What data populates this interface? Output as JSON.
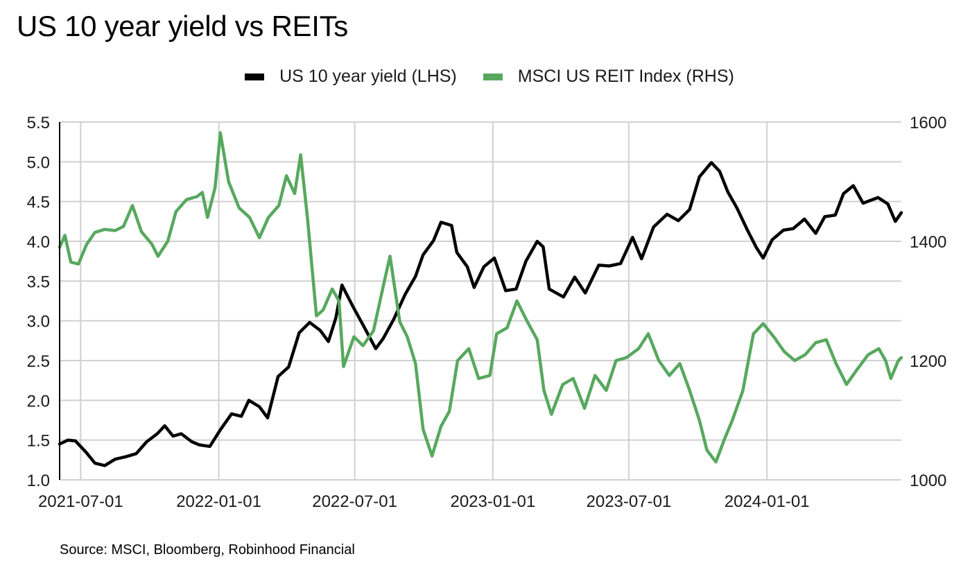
{
  "chart_data": {
    "type": "line",
    "title": "US 10 year yield vs REITs",
    "source": "Source: MSCI, Bloomberg, Robinhood Financial",
    "xlabel": "",
    "ylabel_left": "",
    "ylabel_right": "",
    "legend_position": "top-center",
    "grid": true,
    "x_range": [
      "2021-06-03",
      "2024-06-28"
    ],
    "x_ticks": [
      "2021-07-01",
      "2022-01-01",
      "2022-07-01",
      "2023-01-01",
      "2023-07-01",
      "2024-01-01"
    ],
    "y_left": {
      "range": [
        1.0,
        5.5
      ],
      "ticks": [
        "1.0",
        "1.5",
        "2.0",
        "2.5",
        "3.0",
        "3.5",
        "4.0",
        "4.5",
        "5.0",
        "5.5"
      ]
    },
    "y_right": {
      "range": [
        1000,
        1600
      ],
      "ticks": [
        "1000",
        "1200",
        "1400",
        "1600"
      ]
    },
    "series": [
      {
        "name": "US 10 year yield (LHS)",
        "axis": "left",
        "color": "#000000",
        "points": [
          [
            "2021-06-03",
            1.45
          ],
          [
            "2021-06-14",
            1.5
          ],
          [
            "2021-06-24",
            1.49
          ],
          [
            "2021-07-08",
            1.35
          ],
          [
            "2021-07-20",
            1.21
          ],
          [
            "2021-08-02",
            1.18
          ],
          [
            "2021-08-16",
            1.26
          ],
          [
            "2021-08-30",
            1.29
          ],
          [
            "2021-09-13",
            1.33
          ],
          [
            "2021-09-27",
            1.48
          ],
          [
            "2021-10-11",
            1.58
          ],
          [
            "2021-10-21",
            1.68
          ],
          [
            "2021-11-01",
            1.55
          ],
          [
            "2021-11-12",
            1.58
          ],
          [
            "2021-11-26",
            1.48
          ],
          [
            "2021-12-06",
            1.44
          ],
          [
            "2021-12-20",
            1.42
          ],
          [
            "2022-01-03",
            1.63
          ],
          [
            "2022-01-18",
            1.83
          ],
          [
            "2022-01-31",
            1.8
          ],
          [
            "2022-02-10",
            2.0
          ],
          [
            "2022-02-24",
            1.92
          ],
          [
            "2022-03-07",
            1.78
          ],
          [
            "2022-03-21",
            2.3
          ],
          [
            "2022-04-04",
            2.42
          ],
          [
            "2022-04-18",
            2.85
          ],
          [
            "2022-05-02",
            2.98
          ],
          [
            "2022-05-16",
            2.88
          ],
          [
            "2022-05-27",
            2.74
          ],
          [
            "2022-06-06",
            3.04
          ],
          [
            "2022-06-14",
            3.45
          ],
          [
            "2022-06-28",
            3.19
          ],
          [
            "2022-07-12",
            2.95
          ],
          [
            "2022-07-29",
            2.65
          ],
          [
            "2022-08-08",
            2.78
          ],
          [
            "2022-08-22",
            3.02
          ],
          [
            "2022-09-06",
            3.33
          ],
          [
            "2022-09-20",
            3.56
          ],
          [
            "2022-09-30",
            3.83
          ],
          [
            "2022-10-14",
            4.01
          ],
          [
            "2022-10-24",
            4.24
          ],
          [
            "2022-11-07",
            4.2
          ],
          [
            "2022-11-14",
            3.86
          ],
          [
            "2022-11-28",
            3.68
          ],
          [
            "2022-12-07",
            3.42
          ],
          [
            "2022-12-20",
            3.68
          ],
          [
            "2023-01-03",
            3.79
          ],
          [
            "2023-01-18",
            3.38
          ],
          [
            "2023-02-01",
            3.4
          ],
          [
            "2023-02-14",
            3.75
          ],
          [
            "2023-03-01",
            4.0
          ],
          [
            "2023-03-09",
            3.93
          ],
          [
            "2023-03-17",
            3.4
          ],
          [
            "2023-04-05",
            3.3
          ],
          [
            "2023-04-20",
            3.55
          ],
          [
            "2023-05-04",
            3.35
          ],
          [
            "2023-05-22",
            3.7
          ],
          [
            "2023-06-05",
            3.69
          ],
          [
            "2023-06-20",
            3.72
          ],
          [
            "2023-07-06",
            4.05
          ],
          [
            "2023-07-18",
            3.78
          ],
          [
            "2023-08-03",
            4.18
          ],
          [
            "2023-08-21",
            4.34
          ],
          [
            "2023-09-05",
            4.26
          ],
          [
            "2023-09-20",
            4.4
          ],
          [
            "2023-10-03",
            4.81
          ],
          [
            "2023-10-19",
            4.99
          ],
          [
            "2023-10-30",
            4.88
          ],
          [
            "2023-11-10",
            4.62
          ],
          [
            "2023-11-22",
            4.42
          ],
          [
            "2023-12-06",
            4.14
          ],
          [
            "2023-12-18",
            3.92
          ],
          [
            "2023-12-27",
            3.79
          ],
          [
            "2024-01-08",
            4.02
          ],
          [
            "2024-01-23",
            4.14
          ],
          [
            "2024-02-05",
            4.16
          ],
          [
            "2024-02-20",
            4.28
          ],
          [
            "2024-03-06",
            4.1
          ],
          [
            "2024-03-18",
            4.31
          ],
          [
            "2024-04-01",
            4.33
          ],
          [
            "2024-04-12",
            4.6
          ],
          [
            "2024-04-25",
            4.7
          ],
          [
            "2024-05-08",
            4.48
          ],
          [
            "2024-05-28",
            4.55
          ],
          [
            "2024-06-10",
            4.47
          ],
          [
            "2024-06-20",
            4.25
          ],
          [
            "2024-06-28",
            4.36
          ]
        ]
      },
      {
        "name": "MSCI US REIT Index (RHS)",
        "axis": "right",
        "color": "#57a85e",
        "points": [
          [
            "2021-06-03",
            1390
          ],
          [
            "2021-06-10",
            1410
          ],
          [
            "2021-06-18",
            1365
          ],
          [
            "2021-06-28",
            1362
          ],
          [
            "2021-07-09",
            1395
          ],
          [
            "2021-07-20",
            1415
          ],
          [
            "2021-08-02",
            1420
          ],
          [
            "2021-08-16",
            1418
          ],
          [
            "2021-08-27",
            1425
          ],
          [
            "2021-09-08",
            1460
          ],
          [
            "2021-09-20",
            1416
          ],
          [
            "2021-10-04",
            1395
          ],
          [
            "2021-10-12",
            1375
          ],
          [
            "2021-10-25",
            1400
          ],
          [
            "2021-11-05",
            1450
          ],
          [
            "2021-11-19",
            1470
          ],
          [
            "2021-12-03",
            1475
          ],
          [
            "2021-12-10",
            1482
          ],
          [
            "2021-12-17",
            1440
          ],
          [
            "2021-12-27",
            1490
          ],
          [
            "2022-01-03",
            1582
          ],
          [
            "2022-01-14",
            1500
          ],
          [
            "2022-01-28",
            1456
          ],
          [
            "2022-02-11",
            1440
          ],
          [
            "2022-02-24",
            1406
          ],
          [
            "2022-03-08",
            1440
          ],
          [
            "2022-03-22",
            1460
          ],
          [
            "2022-04-01",
            1510
          ],
          [
            "2022-04-12",
            1480
          ],
          [
            "2022-04-20",
            1545
          ],
          [
            "2022-04-29",
            1440
          ],
          [
            "2022-05-11",
            1275
          ],
          [
            "2022-05-20",
            1285
          ],
          [
            "2022-06-01",
            1320
          ],
          [
            "2022-06-10",
            1300
          ],
          [
            "2022-06-16",
            1190
          ],
          [
            "2022-06-30",
            1240
          ],
          [
            "2022-07-12",
            1225
          ],
          [
            "2022-07-26",
            1250
          ],
          [
            "2022-08-08",
            1325
          ],
          [
            "2022-08-17",
            1375
          ],
          [
            "2022-08-30",
            1265
          ],
          [
            "2022-09-09",
            1240
          ],
          [
            "2022-09-20",
            1195
          ],
          [
            "2022-09-30",
            1085
          ],
          [
            "2022-10-12",
            1040
          ],
          [
            "2022-10-24",
            1090
          ],
          [
            "2022-11-04",
            1115
          ],
          [
            "2022-11-15",
            1200
          ],
          [
            "2022-11-30",
            1220
          ],
          [
            "2022-12-13",
            1170
          ],
          [
            "2022-12-28",
            1175
          ],
          [
            "2023-01-06",
            1245
          ],
          [
            "2023-01-20",
            1255
          ],
          [
            "2023-02-02",
            1300
          ],
          [
            "2023-02-16",
            1265
          ],
          [
            "2023-03-01",
            1235
          ],
          [
            "2023-03-10",
            1150
          ],
          [
            "2023-03-20",
            1110
          ],
          [
            "2023-04-04",
            1160
          ],
          [
            "2023-04-18",
            1170
          ],
          [
            "2023-05-03",
            1120
          ],
          [
            "2023-05-17",
            1175
          ],
          [
            "2023-06-01",
            1150
          ],
          [
            "2023-06-14",
            1200
          ],
          [
            "2023-06-28",
            1205
          ],
          [
            "2023-07-14",
            1220
          ],
          [
            "2023-07-27",
            1245
          ],
          [
            "2023-08-10",
            1200
          ],
          [
            "2023-08-24",
            1175
          ],
          [
            "2023-09-07",
            1195
          ],
          [
            "2023-09-20",
            1150
          ],
          [
            "2023-10-03",
            1100
          ],
          [
            "2023-10-13",
            1050
          ],
          [
            "2023-10-25",
            1030
          ],
          [
            "2023-11-06",
            1070
          ],
          [
            "2023-11-16",
            1100
          ],
          [
            "2023-11-30",
            1150
          ],
          [
            "2023-12-08",
            1205
          ],
          [
            "2023-12-14",
            1245
          ],
          [
            "2023-12-27",
            1262
          ],
          [
            "2024-01-10",
            1240
          ],
          [
            "2024-01-24",
            1215
          ],
          [
            "2024-02-07",
            1200
          ],
          [
            "2024-02-21",
            1210
          ],
          [
            "2024-03-06",
            1230
          ],
          [
            "2024-03-20",
            1235
          ],
          [
            "2024-04-02",
            1195
          ],
          [
            "2024-04-16",
            1160
          ],
          [
            "2024-04-30",
            1185
          ],
          [
            "2024-05-15",
            1210
          ],
          [
            "2024-05-29",
            1220
          ],
          [
            "2024-06-07",
            1200
          ],
          [
            "2024-06-14",
            1170
          ],
          [
            "2024-06-24",
            1200
          ],
          [
            "2024-06-28",
            1205
          ]
        ]
      }
    ]
  }
}
